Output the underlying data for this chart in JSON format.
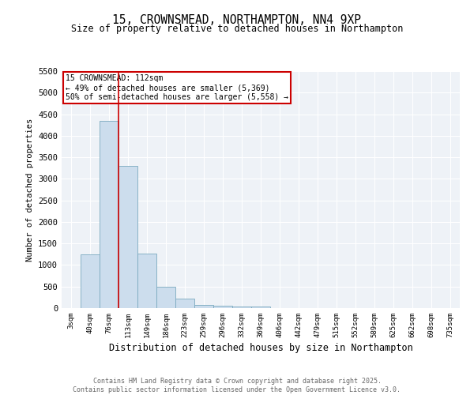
{
  "title_line1": "15, CROWNSMEAD, NORTHAMPTON, NN4 9XP",
  "title_line2": "Size of property relative to detached houses in Northampton",
  "xlabel": "Distribution of detached houses by size in Northampton",
  "ylabel": "Number of detached properties",
  "annotation_line1": "15 CROWNSMEAD: 112sqm",
  "annotation_line2": "← 49% of detached houses are smaller (5,369)",
  "annotation_line3": "50% of semi-detached houses are larger (5,558) →",
  "bar_labels": [
    "3sqm",
    "40sqm",
    "76sqm",
    "113sqm",
    "149sqm",
    "186sqm",
    "223sqm",
    "259sqm",
    "296sqm",
    "332sqm",
    "369sqm",
    "406sqm",
    "442sqm",
    "479sqm",
    "515sqm",
    "552sqm",
    "589sqm",
    "625sqm",
    "662sqm",
    "698sqm",
    "735sqm"
  ],
  "bar_values": [
    0,
    1250,
    4350,
    3300,
    1270,
    500,
    220,
    80,
    50,
    30,
    30,
    0,
    0,
    0,
    0,
    0,
    0,
    0,
    0,
    0,
    0
  ],
  "bar_color": "#ccdded",
  "bar_edge_color": "#7aaabf",
  "vline_color": "#cc0000",
  "ylim": [
    0,
    5500
  ],
  "yticks": [
    0,
    500,
    1000,
    1500,
    2000,
    2500,
    3000,
    3500,
    4000,
    4500,
    5000,
    5500
  ],
  "annotation_box_edge_color": "#cc0000",
  "bg_color": "#eef2f7",
  "footer_line1": "Contains HM Land Registry data © Crown copyright and database right 2025.",
  "footer_line2": "Contains public sector information licensed under the Open Government Licence v3.0."
}
